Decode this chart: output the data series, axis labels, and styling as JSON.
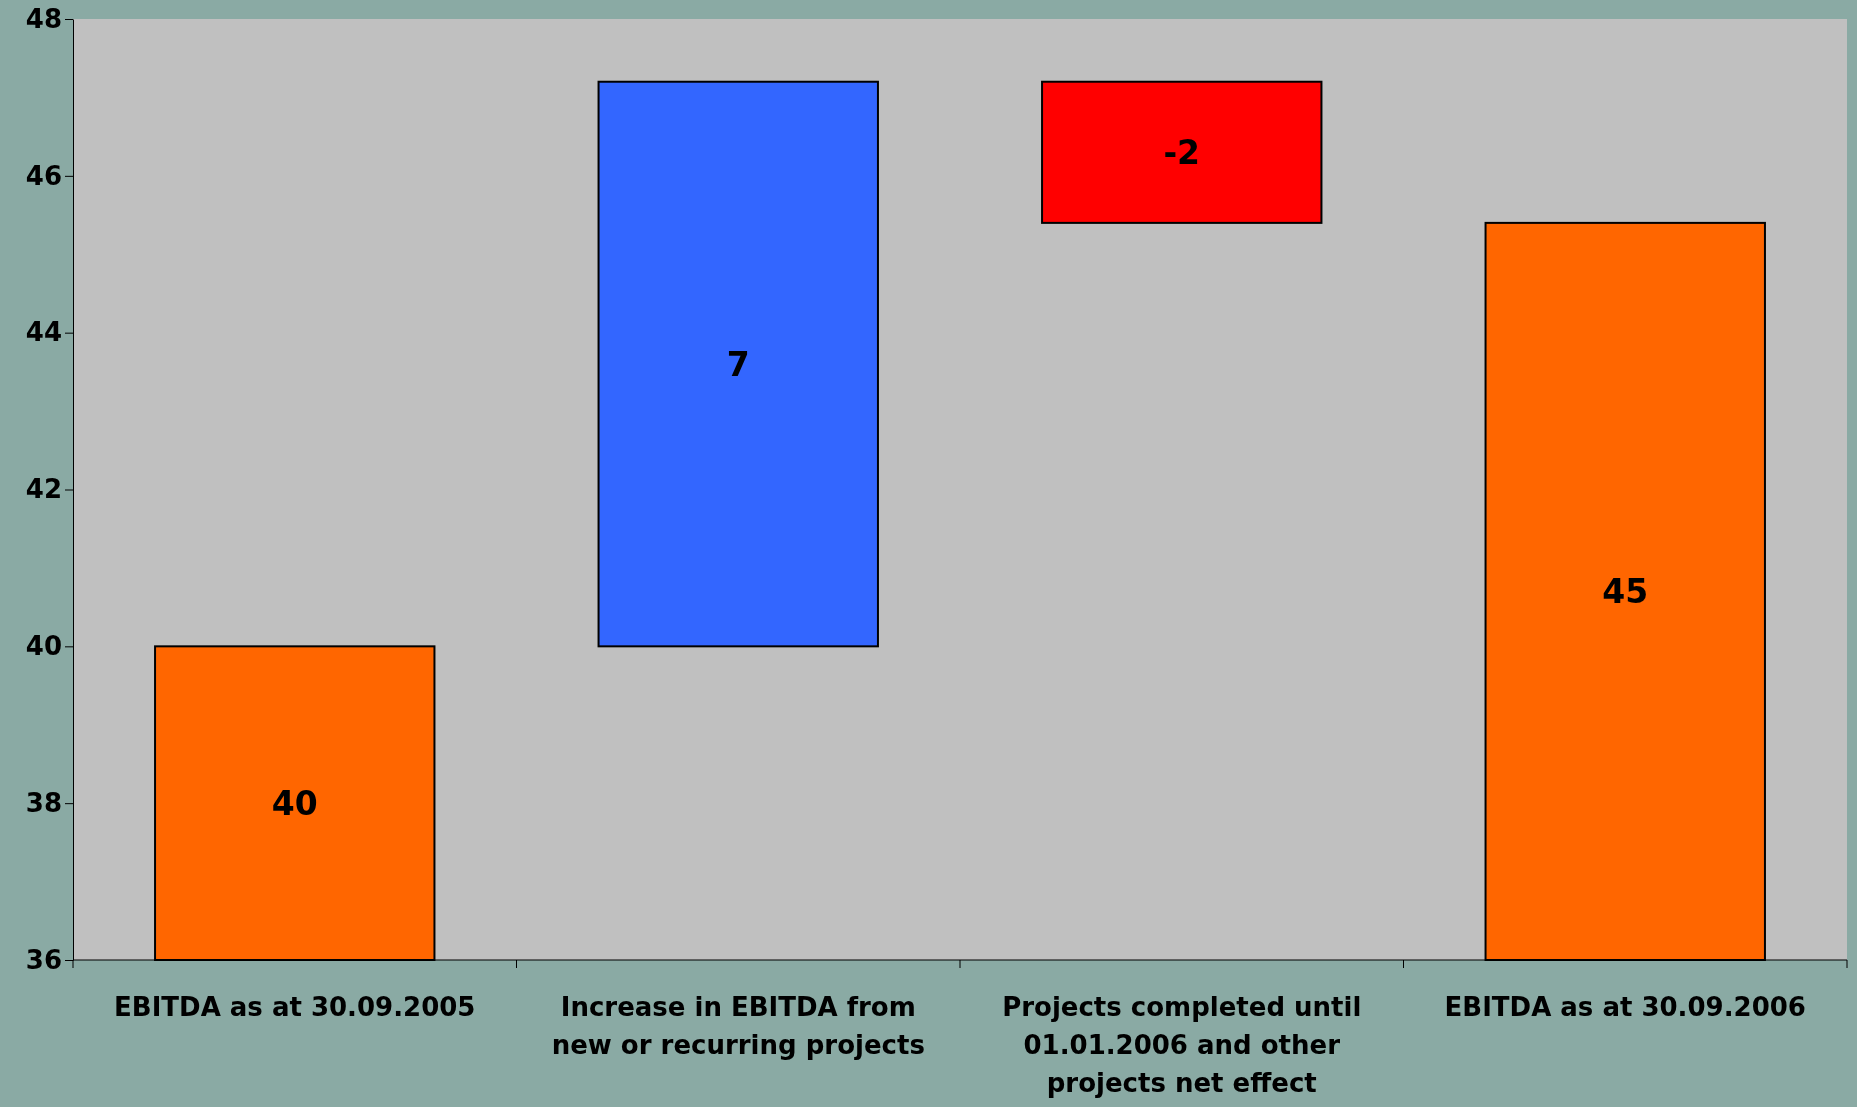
{
  "chart_data": {
    "type": "bar",
    "categories": [
      "EBITDA as at 30.09.2005",
      "Increase in EBITDA from new or recurring projects",
      "Projects completed until 01.01.2006 and other projects net effect",
      "EBITDA as at 30.09.2006"
    ],
    "values": [
      40,
      7.2,
      -1.8,
      45.4
    ],
    "base": [
      0,
      40,
      47.2,
      0
    ],
    "colors": [
      "#ff6600",
      "#3366ff",
      "#ff0000",
      "#ff6600"
    ],
    "value_labels": [
      "40",
      "7",
      "-2",
      "45"
    ],
    "ylim": [
      36,
      48
    ],
    "yticks": [
      36,
      38,
      40,
      42,
      44,
      46,
      48
    ],
    "grid": false
  }
}
